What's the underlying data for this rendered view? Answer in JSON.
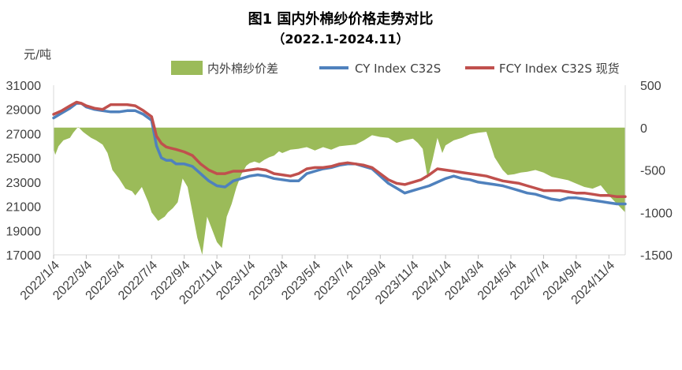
{
  "chart_data": {
    "type": "line",
    "title": "图1 国内外棉纱价格走势对比",
    "subtitle": "（2022.1-2024.11）",
    "ylabel_left": "元/吨",
    "y_left_range": [
      17000,
      31000
    ],
    "y_left_ticks": [
      "31000",
      "29000",
      "27000",
      "25000",
      "23000",
      "21000",
      "19000",
      "17000"
    ],
    "y_right_range": [
      -1500,
      500
    ],
    "y_right_ticks": [
      "500",
      "0",
      "-500",
      "-1000",
      "-1500"
    ],
    "x_ticks": [
      "2022/1/4",
      "2022/3/4",
      "2022/5/4",
      "2022/7/4",
      "2022/9/4",
      "2022/11/4",
      "2023/1/4",
      "2023/3/4",
      "2023/5/4",
      "2023/7/4",
      "2023/9/4",
      "2023/11/4",
      "2024/1/4",
      "2024/3/4",
      "2024/5/4",
      "2024/7/4",
      "2024/9/4",
      "2024/11/4"
    ],
    "x_range": [
      0,
      35
    ],
    "legend_position": "top",
    "grid": false,
    "series": [
      {
        "name": "内外棉纱价差",
        "type": "area",
        "axis": "right",
        "color": "#9BBB59",
        "x": [
          0,
          0.1,
          0.3,
          0.6,
          1,
          1.2,
          1.5,
          1.8,
          2,
          2.3,
          2.6,
          3,
          3.3,
          3.6,
          4,
          4.4,
          4.8,
          5,
          5.4,
          5.8,
          6,
          6.4,
          6.8,
          7,
          7.3,
          7.6,
          7.9,
          8.2,
          8.5,
          8.8,
          9.1,
          9.4,
          9.7,
          10,
          10.3,
          10.6,
          10.9,
          11.2,
          11.5,
          11.8,
          12,
          12.3,
          12.6,
          12.9,
          13.2,
          13.5,
          13.8,
          14,
          14.5,
          15,
          15.5,
          16,
          16.5,
          17,
          17.5,
          18,
          18.5,
          19,
          19.5,
          20,
          20.5,
          21,
          21.5,
          22,
          22.3,
          22.6,
          22.9,
          23.2,
          23.5,
          23.8,
          24,
          24.5,
          25,
          25.5,
          26,
          26.5,
          27,
          27.5,
          27.8,
          28.2,
          28.6,
          29,
          29.5,
          30,
          30.5,
          31,
          31.5,
          32,
          32.5,
          33,
          33.5,
          34,
          34.5,
          35
        ],
        "values": [
          -250,
          -320,
          -220,
          -150,
          -120,
          -60,
          10,
          -50,
          -80,
          -120,
          -150,
          -200,
          -300,
          -500,
          -600,
          -720,
          -750,
          -800,
          -700,
          -880,
          -1000,
          -1100,
          -1050,
          -1000,
          -950,
          -880,
          -600,
          -700,
          -1000,
          -1300,
          -1500,
          -1050,
          -1200,
          -1350,
          -1420,
          -1050,
          -900,
          -700,
          -550,
          -450,
          -420,
          -400,
          -420,
          -380,
          -350,
          -330,
          -280,
          -300,
          -260,
          -250,
          -230,
          -270,
          -230,
          -260,
          -220,
          -210,
          -200,
          -150,
          -90,
          -110,
          -120,
          -180,
          -150,
          -130,
          -180,
          -250,
          -600,
          -380,
          -120,
          -300,
          -210,
          -150,
          -120,
          -80,
          -60,
          -50,
          -350,
          -500,
          -560,
          -550,
          -530,
          -520,
          -500,
          -530,
          -580,
          -600,
          -620,
          -660,
          -700,
          -720,
          -680,
          -800,
          -900,
          -1000
        ],
        "description_ref": "内外棉纱价差"
      },
      {
        "name": "CY Index C32S",
        "axis": "left",
        "color": "#4F81BD",
        "x": [
          0,
          0.5,
          1,
          1.4,
          1.7,
          2,
          2.5,
          3,
          3.5,
          4,
          4.5,
          5,
          5.5,
          6,
          6.3,
          6.6,
          6.9,
          7.2,
          7.5,
          8,
          8.5,
          9,
          9.5,
          10,
          10.5,
          11,
          11.5,
          12,
          12.5,
          13,
          13.5,
          14,
          14.5,
          15,
          15.5,
          16,
          16.5,
          17,
          17.5,
          18,
          18.5,
          19,
          19.5,
          20,
          20.5,
          21,
          21.5,
          22,
          22.5,
          23,
          23.5,
          24,
          24.5,
          25,
          25.5,
          26,
          26.5,
          27,
          27.5,
          28,
          28.5,
          29,
          29.5,
          30,
          30.5,
          31,
          31.5,
          32,
          32.5,
          33,
          33.5,
          34,
          34.5,
          35
        ],
        "values": [
          28300,
          28700,
          29100,
          29500,
          29500,
          29200,
          29000,
          28900,
          28800,
          28800,
          28900,
          28900,
          28600,
          28100,
          26000,
          25000,
          24800,
          24800,
          24500,
          24500,
          24300,
          23700,
          23100,
          22700,
          22600,
          23100,
          23300,
          23500,
          23600,
          23500,
          23300,
          23200,
          23100,
          23100,
          23700,
          23900,
          24100,
          24200,
          24400,
          24500,
          24500,
          24300,
          24100,
          23500,
          22900,
          22500,
          22100,
          22300,
          22500,
          22700,
          23000,
          23300,
          23500,
          23300,
          23200,
          23000,
          22900,
          22800,
          22700,
          22500,
          22300,
          22100,
          22000,
          21800,
          21600,
          21500,
          21700,
          21700,
          21600,
          21500,
          21400,
          21300,
          21200,
          21200
        ]
      },
      {
        "name": "FCY Index C32S 现货",
        "axis": "left",
        "color": "#C0504D",
        "x": [
          0,
          0.5,
          1,
          1.4,
          1.7,
          2,
          2.5,
          3,
          3.5,
          4,
          4.5,
          5,
          5.5,
          6,
          6.3,
          6.6,
          6.9,
          7.2,
          7.5,
          8,
          8.5,
          9,
          9.5,
          10,
          10.5,
          11,
          11.5,
          12,
          12.5,
          13,
          13.5,
          14,
          14.5,
          15,
          15.5,
          16,
          16.5,
          17,
          17.5,
          18,
          18.5,
          19,
          19.5,
          20,
          20.5,
          21,
          21.5,
          22,
          22.5,
          23,
          23.5,
          24,
          24.5,
          25,
          25.5,
          26,
          26.5,
          27,
          27.5,
          28,
          28.5,
          29,
          29.5,
          30,
          30.5,
          31,
          31.5,
          32,
          32.5,
          33,
          33.5,
          34,
          34.5,
          35
        ],
        "values": [
          28600,
          28900,
          29300,
          29600,
          29500,
          29300,
          29100,
          29000,
          29400,
          29400,
          29400,
          29300,
          28900,
          28400,
          26800,
          26200,
          25900,
          25800,
          25700,
          25500,
          25200,
          24500,
          24000,
          23700,
          23700,
          23900,
          23900,
          24000,
          24100,
          24000,
          23700,
          23600,
          23500,
          23700,
          24100,
          24200,
          24200,
          24300,
          24500,
          24600,
          24500,
          24400,
          24200,
          23700,
          23200,
          22900,
          22800,
          23000,
          23200,
          23600,
          24100,
          24000,
          23900,
          23800,
          23700,
          23600,
          23500,
          23300,
          23100,
          23000,
          22900,
          22700,
          22500,
          22300,
          22300,
          22300,
          22200,
          22100,
          22100,
          22000,
          21900,
          21900,
          21800,
          21800
        ]
      }
    ]
  }
}
